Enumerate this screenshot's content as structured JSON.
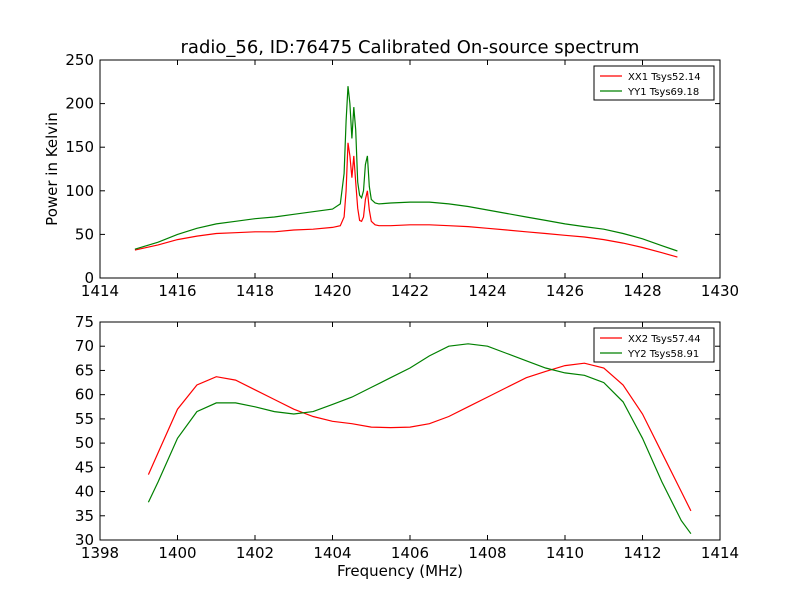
{
  "figure": {
    "title": "radio_56, ID:76475 Calibrated On-source spectrum"
  },
  "chart_data": [
    {
      "type": "line",
      "title": "radio_56, ID:76475 Calibrated On-source spectrum",
      "xlabel": "",
      "ylabel": "Power in Kelvin",
      "xlim": [
        1414,
        1430
      ],
      "ylim": [
        0,
        250
      ],
      "xticks": [
        1414,
        1416,
        1418,
        1420,
        1422,
        1424,
        1426,
        1428,
        1430
      ],
      "yticks": [
        0,
        50,
        100,
        150,
        200,
        250
      ],
      "grid": false,
      "legend": "top-right",
      "series": [
        {
          "name": "XX1 Tsys52.14",
          "color": "#ff0000",
          "x": [
            1414.9,
            1415.5,
            1416,
            1416.5,
            1417,
            1417.5,
            1418,
            1418.5,
            1419,
            1419.5,
            1420,
            1420.2,
            1420.3,
            1420.35,
            1420.4,
            1420.45,
            1420.5,
            1420.55,
            1420.6,
            1420.65,
            1420.7,
            1420.75,
            1420.8,
            1420.85,
            1420.9,
            1420.95,
            1421.0,
            1421.1,
            1421.2,
            1421.5,
            1422,
            1422.5,
            1423,
            1423.5,
            1424,
            1424.5,
            1425,
            1425.5,
            1426,
            1426.5,
            1427,
            1427.5,
            1428,
            1428.5,
            1428.9
          ],
          "values": [
            32,
            38,
            44,
            48,
            51,
            52,
            53,
            53,
            55,
            56,
            58,
            60,
            70,
            100,
            155,
            140,
            115,
            140,
            110,
            80,
            66,
            65,
            70,
            90,
            100,
            78,
            65,
            61,
            60,
            60,
            61,
            61,
            60,
            59,
            57,
            55,
            53,
            51,
            49,
            47,
            44,
            40,
            35,
            29,
            24
          ]
        },
        {
          "name": "YY1 Tsys69.18",
          "color": "#008000",
          "x": [
            1414.9,
            1415.5,
            1416,
            1416.5,
            1417,
            1417.5,
            1418,
            1418.5,
            1419,
            1419.5,
            1420,
            1420.2,
            1420.3,
            1420.35,
            1420.4,
            1420.45,
            1420.5,
            1420.55,
            1420.6,
            1420.65,
            1420.7,
            1420.75,
            1420.8,
            1420.85,
            1420.9,
            1420.95,
            1421.0,
            1421.1,
            1421.2,
            1421.5,
            1422,
            1422.5,
            1423,
            1423.5,
            1424,
            1424.5,
            1425,
            1425.5,
            1426,
            1426.5,
            1427,
            1427.5,
            1428,
            1428.5,
            1428.9
          ],
          "values": [
            33,
            41,
            50,
            57,
            62,
            65,
            68,
            70,
            73,
            76,
            79,
            85,
            120,
            180,
            220,
            200,
            160,
            196,
            170,
            110,
            95,
            92,
            100,
            130,
            140,
            105,
            90,
            86,
            85,
            86,
            87,
            87,
            85,
            82,
            78,
            74,
            70,
            66,
            62,
            59,
            56,
            51,
            45,
            37,
            31
          ]
        }
      ]
    },
    {
      "type": "line",
      "title": "",
      "xlabel": "Frequency (MHz)",
      "ylabel": "",
      "xlim": [
        1398,
        1414
      ],
      "ylim": [
        30,
        75
      ],
      "xticks": [
        1398,
        1400,
        1402,
        1404,
        1406,
        1408,
        1410,
        1412,
        1414
      ],
      "yticks": [
        30,
        35,
        40,
        45,
        50,
        55,
        60,
        65,
        70,
        75
      ],
      "grid": false,
      "legend": "top-right",
      "series": [
        {
          "name": "XX2 Tsys57.44",
          "color": "#ff0000",
          "x": [
            1399.25,
            1399.5,
            1400,
            1400.5,
            1401,
            1401.5,
            1402,
            1402.5,
            1403,
            1403.5,
            1404,
            1404.5,
            1405,
            1405.5,
            1406,
            1406.5,
            1407,
            1407.5,
            1408,
            1408.5,
            1409,
            1409.5,
            1410,
            1410.5,
            1411,
            1411.5,
            1412,
            1412.5,
            1413,
            1413.25
          ],
          "values": [
            43.5,
            48,
            57,
            62,
            63.7,
            63,
            61,
            59,
            57,
            55.5,
            54.5,
            54,
            53.3,
            53.2,
            53.3,
            54,
            55.5,
            57.5,
            59.5,
            61.5,
            63.5,
            64.8,
            66,
            66.5,
            65.5,
            62,
            56,
            48,
            40,
            36
          ]
        },
        {
          "name": "YY2 Tsys58.91",
          "color": "#008000",
          "x": [
            1399.25,
            1399.5,
            1400,
            1400.5,
            1401,
            1401.5,
            1402,
            1402.5,
            1403,
            1403.5,
            1404,
            1404.5,
            1405,
            1405.5,
            1406,
            1406.5,
            1407,
            1407.5,
            1408,
            1408.5,
            1409,
            1409.5,
            1410,
            1410.5,
            1411,
            1411.5,
            1412,
            1412.5,
            1413,
            1413.25
          ],
          "values": [
            37.8,
            42,
            51,
            56.5,
            58.3,
            58.3,
            57.5,
            56.5,
            56,
            56.5,
            58,
            59.5,
            61.5,
            63.5,
            65.5,
            68,
            70,
            70.5,
            70,
            68.5,
            67,
            65.5,
            64.5,
            64,
            62.5,
            58.5,
            51,
            42,
            34,
            31.3
          ]
        }
      ]
    }
  ]
}
